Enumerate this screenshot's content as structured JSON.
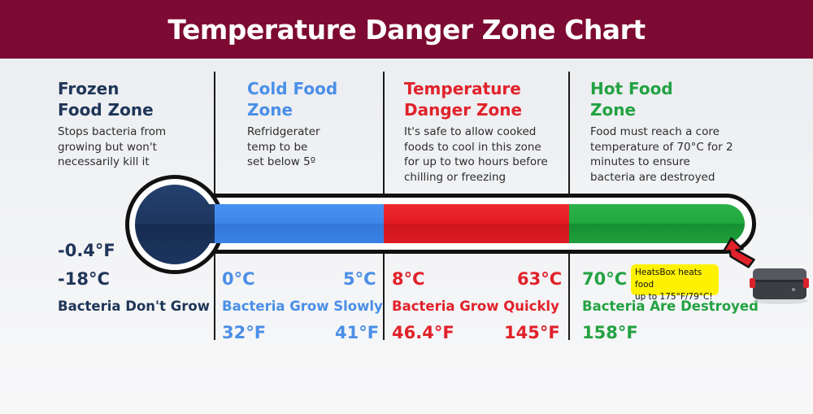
{
  "title": "Temperature Danger Zone Chart",
  "colors": {
    "header": "#7d0a33",
    "frozen": "#1f3558",
    "cold": "#4a8fe8",
    "danger": "#e1222a",
    "hot": "#23a242",
    "callout": "#fff200"
  },
  "zones": {
    "frozen": {
      "title_line1": "Frozen",
      "title_line2": "Food Zone",
      "desc": [
        "Stops bacteria from",
        "growing but won't",
        "necessarily kill it"
      ],
      "temp_f": "-0.4°F",
      "temp_c": "-18°C",
      "status": "Bacteria Don't Grow"
    },
    "cold": {
      "title_line1": "Cold Food",
      "title_line2": "Zone",
      "desc": [
        "Refridgerater",
        "temp to be",
        "set below 5º"
      ],
      "low_c": "0°C",
      "high_c": "5°C",
      "status": "Bacteria Grow Slowly",
      "low_f": "32°F",
      "high_f": "41°F"
    },
    "danger": {
      "title_line1": "Temperature",
      "title_line2": "Danger Zone",
      "desc": [
        "It's safe to allow cooked",
        "foods to cool in this zone",
        "for up to two hours before",
        "chilling or freezing"
      ],
      "low_c": "8°C",
      "high_c": "63°C",
      "status": "Bacteria Grow Quickly",
      "low_f": "46.4°F",
      "high_f": "145°F"
    },
    "hot": {
      "title_line1": "Hot Food",
      "title_line2": "Zone",
      "desc": [
        "Food must reach a core",
        "temperature of 70°C for 2",
        "minutes to ensure",
        "bacteria are destroyed"
      ],
      "low_c": "70°C",
      "status": "Bacteria Are Destroyed",
      "low_f": "158°F"
    }
  },
  "callout": {
    "line1": "HeatsBox heats food",
    "line2": "up to 175°F/79°C!"
  }
}
